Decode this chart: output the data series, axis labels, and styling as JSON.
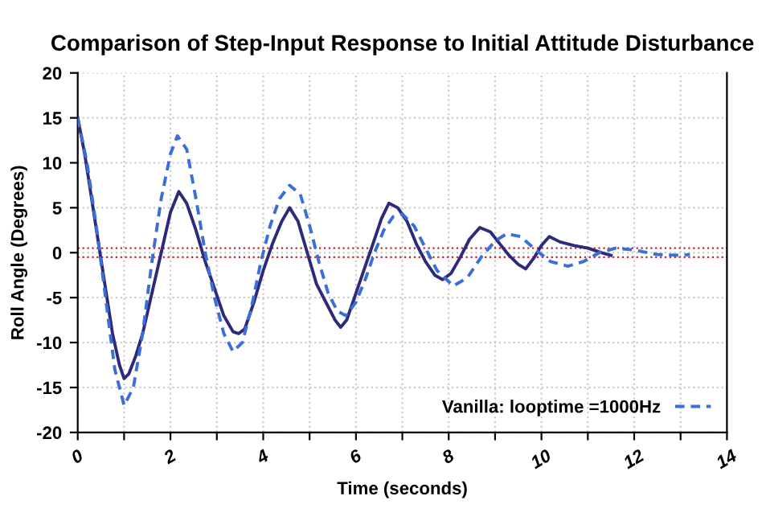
{
  "chart_data": {
    "type": "line",
    "title": "Comparison of Step-Input Response to Initial Attitude Disturbance",
    "xlabel": "Time (seconds)",
    "ylabel": "Roll Angle (Degrees)",
    "xlim": [
      0,
      14
    ],
    "ylim": [
      -20,
      20
    ],
    "xticks": [
      0,
      {
        "value": 1,
        "label": null
      },
      2,
      {
        "value": 3,
        "label": null
      },
      4,
      {
        "value": 5,
        "label": null
      },
      6,
      {
        "value": 7,
        "label": null
      },
      8,
      {
        "value": 9,
        "label": null
      },
      10,
      {
        "value": 11,
        "label": null
      },
      12,
      {
        "value": 13,
        "label": null
      },
      14
    ],
    "yticks": [
      -20,
      -15,
      -10,
      -5,
      0,
      5,
      10,
      15,
      20
    ],
    "grid": true,
    "legend": "bottom right",
    "marker": "none",
    "ref_lines": [
      {
        "axis": "y",
        "value": 0.5,
        "color": "#c0282d",
        "line_style": "dotted"
      },
      {
        "axis": "y",
        "value": -0.5,
        "color": "#c0282d",
        "line_style": "dotted"
      }
    ],
    "series": [
      {
        "color": "#2e2a7a",
        "line_style": "solid",
        "x": [
          0,
          0.15,
          0.3,
          0.45,
          0.6,
          0.75,
          0.9,
          1.0,
          1.1,
          1.25,
          1.4,
          1.6,
          1.8,
          2.0,
          2.18,
          2.35,
          2.55,
          2.75,
          2.95,
          3.15,
          3.35,
          3.47,
          3.6,
          3.8,
          4.0,
          4.2,
          4.4,
          4.57,
          4.75,
          4.95,
          5.15,
          5.35,
          5.55,
          5.67,
          5.8,
          6.0,
          6.2,
          6.4,
          6.55,
          6.71,
          6.9,
          7.1,
          7.3,
          7.5,
          7.7,
          7.87,
          8.05,
          8.25,
          8.45,
          8.67,
          8.9,
          9.1,
          9.3,
          9.5,
          9.66,
          9.85,
          10.0,
          10.17,
          10.4,
          10.7,
          11.0,
          11.3,
          11.5
        ],
        "values": [
          15,
          11,
          6,
          1,
          -4,
          -9,
          -12.5,
          -14,
          -13.5,
          -11.5,
          -9,
          -4.5,
          0,
          4.5,
          6.8,
          5.5,
          2.5,
          -1,
          -4,
          -7,
          -8.8,
          -9,
          -8.5,
          -5.5,
          -2,
          1,
          3.5,
          5,
          3.5,
          0,
          -3.5,
          -5.5,
          -7.5,
          -8.3,
          -7.5,
          -4.5,
          -1.5,
          1.5,
          3.8,
          5.5,
          5,
          3.5,
          1,
          -1,
          -2.5,
          -3,
          -2.3,
          -0.5,
          1.5,
          2.8,
          2.3,
          1,
          -0.3,
          -1.3,
          -1.8,
          -0.5,
          0.8,
          1.8,
          1.2,
          0.8,
          0.5,
          0,
          -0.3
        ]
      },
      {
        "name": "Vanilla: looptime =1000Hz",
        "color": "#3a6fd8",
        "line_style": "dashed",
        "x": [
          0,
          0.2,
          0.4,
          0.6,
          0.8,
          1.0,
          1.2,
          1.4,
          1.6,
          1.8,
          2.0,
          2.15,
          2.35,
          2.55,
          2.75,
          2.95,
          3.15,
          3.35,
          3.55,
          3.75,
          3.95,
          4.15,
          4.35,
          4.57,
          4.8,
          5.0,
          5.2,
          5.4,
          5.6,
          5.78,
          6.0,
          6.2,
          6.4,
          6.6,
          6.8,
          7.0,
          7.25,
          7.5,
          7.75,
          8.1,
          8.4,
          8.7,
          9.0,
          9.25,
          9.55,
          9.9,
          10.2,
          10.57,
          10.9,
          11.25,
          11.6,
          12.0,
          12.5,
          13.0,
          13.2
        ],
        "values": [
          15,
          10,
          3,
          -5,
          -13,
          -17,
          -15,
          -9,
          -1,
          6,
          11,
          13,
          11.5,
          6,
          0,
          -5,
          -9,
          -11,
          -10,
          -6,
          -1,
          3,
          6,
          7.5,
          6.5,
          3,
          -1,
          -4.5,
          -6.5,
          -7,
          -5.5,
          -3,
          0,
          2.5,
          4,
          4.3,
          3,
          0.5,
          -2,
          -3.7,
          -2.8,
          -0.5,
          1.3,
          2.1,
          1.8,
          0.2,
          -1,
          -1.5,
          -1,
          0,
          0.5,
          0.3,
          -0.2,
          -0.3,
          -0.2
        ]
      }
    ]
  }
}
